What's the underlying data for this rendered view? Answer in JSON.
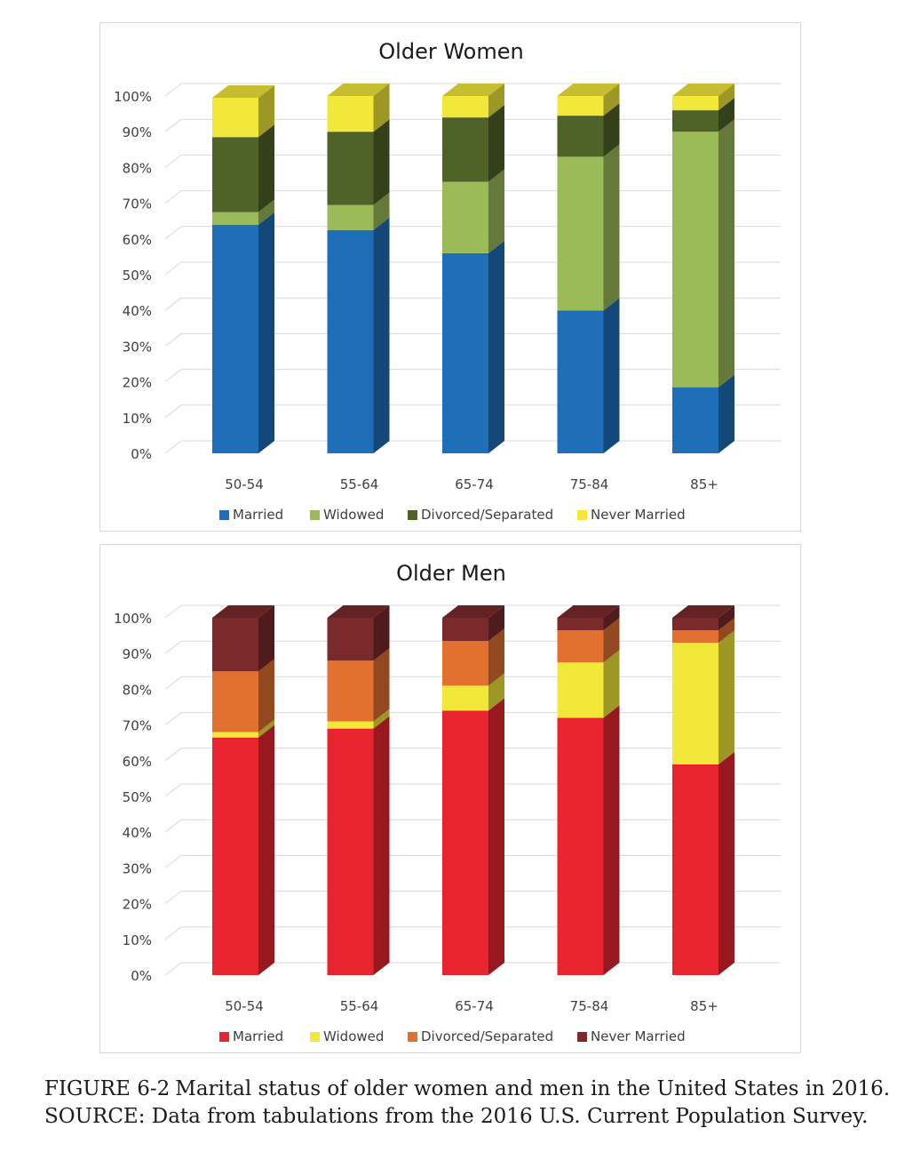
{
  "chart_data": [
    {
      "type": "bar",
      "stacked": true,
      "style": "3d-stacked-column",
      "title": "Older Women",
      "categories": [
        "50-54",
        "55-64",
        "65-74",
        "75-84",
        "85+"
      ],
      "ylim": [
        0,
        100
      ],
      "yticks": [
        "0%",
        "10%",
        "20%",
        "30%",
        "40%",
        "50%",
        "60%",
        "70%",
        "80%",
        "90%",
        "100%"
      ],
      "grid": true,
      "legend_position": "bottom",
      "series": [
        {
          "name": "Married",
          "color": "#1f6eb8",
          "values": [
            64,
            62.5,
            56,
            40,
            18.5
          ]
        },
        {
          "name": "Widowed",
          "color": "#9bbb59",
          "values": [
            3.5,
            7,
            20,
            43,
            71.5
          ]
        },
        {
          "name": "Divorced/Separated",
          "color": "#4f6228",
          "values": [
            21,
            20.5,
            18,
            11.5,
            6
          ]
        },
        {
          "name": "Never Married",
          "color": "#f1e83a",
          "values": [
            11,
            10,
            6,
            5.5,
            4
          ]
        }
      ]
    },
    {
      "type": "bar",
      "stacked": true,
      "style": "3d-stacked-column",
      "title": "Older Men",
      "categories": [
        "50-54",
        "55-64",
        "65-74",
        "75-84",
        "85+"
      ],
      "ylim": [
        0,
        100
      ],
      "yticks": [
        "0%",
        "10%",
        "20%",
        "30%",
        "40%",
        "50%",
        "60%",
        "70%",
        "80%",
        "90%",
        "100%"
      ],
      "grid": true,
      "legend_position": "bottom",
      "series": [
        {
          "name": "Married",
          "color": "#e8252e",
          "values": [
            66.5,
            69,
            74,
            72,
            59
          ]
        },
        {
          "name": "Widowed",
          "color": "#f1e83a",
          "values": [
            1.5,
            2,
            7,
            15.5,
            34
          ]
        },
        {
          "name": "Divorced/Separated",
          "color": "#e2702f",
          "values": [
            17,
            17,
            12.5,
            9,
            3.5
          ]
        },
        {
          "name": "Never Married",
          "color": "#7b2a2b",
          "values": [
            15,
            12,
            6.5,
            3.5,
            3.5
          ]
        }
      ]
    }
  ],
  "caption": {
    "figure_id": "FIGURE 6-2",
    "text": "Marital status of older women and men in the United States in 2016.",
    "source": "SOURCE: Data from tabulations from the 2016 U.S. Current Population Survey."
  }
}
